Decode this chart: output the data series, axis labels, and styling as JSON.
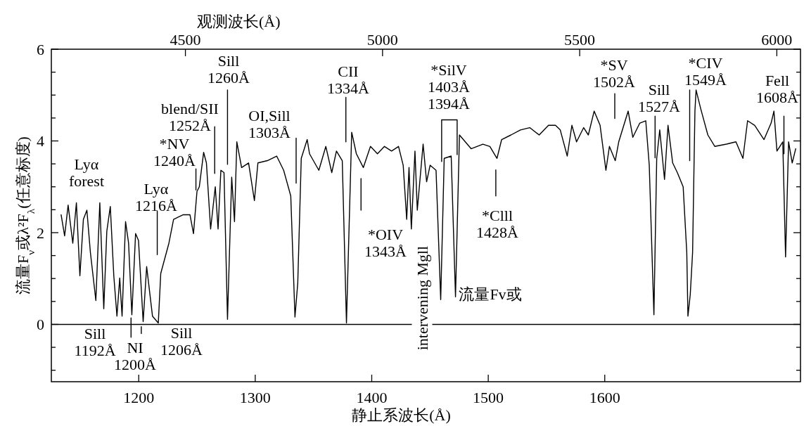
{
  "chart_data": {
    "type": "line",
    "xlabel": "静止系波长(Å)",
    "ylabel": "流量F$_{ν}$或λ²F$_{λ}$(任意标度)",
    "x2label": "观测波长(Å)",
    "xlim": [
      1125,
      1768
    ],
    "xticks": [
      1200,
      1300,
      1400,
      1500,
      1600
    ],
    "x2lim": [
      4160,
      6060
    ],
    "x2ticks": [
      4500,
      5000,
      5500,
      6000
    ],
    "ylim": [
      -1.25,
      6
    ],
    "yticks": [
      {
        "value": -1,
        "label": null
      },
      {
        "value": -0.5,
        "label": null
      },
      0,
      {
        "value": 0.5,
        "label": null
      },
      {
        "value": 1,
        "label": null
      },
      {
        "value": 1.5,
        "label": null
      },
      2,
      {
        "value": 2.5,
        "label": null
      },
      {
        "value": 3,
        "label": null
      },
      {
        "value": 3.5,
        "label": null
      },
      4,
      {
        "value": 4.5,
        "label": null
      },
      {
        "value": 5,
        "label": null
      },
      {
        "value": 5.5,
        "label": null
      },
      6
    ],
    "series": [
      {
        "color": "#000000",
        "x": [
          1133.4,
          1136.4,
          1139.4,
          1143.4,
          1146.5,
          1149.5,
          1152.5,
          1155.5,
          1158.5,
          1163.2,
          1166.6,
          1170,
          1172.6,
          1175.6,
          1178.6,
          1181.3,
          1183.7,
          1185.7,
          1188.7,
          1191.3,
          1194.1,
          1197.3,
          1199.8,
          1203.8,
          1206.8,
          1211.8,
          1216.8,
          1218.9,
          1225.9,
          1229.9,
          1238,
          1244,
          1247,
          1250,
          1252,
          1255.7,
          1258.1,
          1261.7,
          1265.7,
          1268.1,
          1270.5,
          1273.2,
          1276.2,
          1279.8,
          1282.2,
          1284.2,
          1288.3,
          1294.3,
          1299.3,
          1302.3,
          1310.4,
          1318.4,
          1324.4,
          1330.5,
          1334.1,
          1336.5,
          1339.5,
          1344.6,
          1346.6,
          1354.6,
          1360.6,
          1365.7,
          1369.7,
          1374.7,
          1378.3,
          1382.8,
          1386.8,
          1392.8,
          1398.9,
          1404.9,
          1410.9,
          1417,
          1423,
          1427,
          1430,
          1432,
          1434,
          1437.1,
          1439.1,
          1444.1,
          1447.1,
          1450.1,
          1455.2,
          1459.2,
          1462.2,
          1468.2,
          1471.9,
          1475.3,
          1485.3,
          1495.4,
          1501.4,
          1507.5,
          1511.5,
          1519.5,
          1527.6,
          1535.6,
          1543.7,
          1551.7,
          1557.7,
          1561.8,
          1567.8,
          1571.8,
          1575.8,
          1581.9,
          1585.9,
          1590.9,
          1596,
          1601,
          1604,
          1609,
          1612,
          1620.1,
          1624.1,
          1630.1,
          1635.2,
          1638.2,
          1642.2,
          1644.6,
          1647.2,
          1651.3,
          1654.3,
          1658.3,
          1662.3,
          1667.3,
          1670.4,
          1671.4,
          1673.4,
          1675.4,
          1677.4,
          1678.4,
          1682.4,
          1688.5,
          1694.5,
          1704.5,
          1712.6,
          1718.6,
          1722.6,
          1728.7,
          1736.7,
          1742.8,
          1745.2,
          1747.8,
          1752.8,
          1755.2,
          1757.8,
          1760.9,
          1763.9
        ],
        "values": [
          2.39,
          1.93,
          2.6,
          1.77,
          2.65,
          1.06,
          2.29,
          2.49,
          1.57,
          0.52,
          2.65,
          0.34,
          2.03,
          2.57,
          1.06,
          0.18,
          1.01,
          0.18,
          2.24,
          1.77,
          0.21,
          1.98,
          1.83,
          0.06,
          1.26,
          0.18,
          0.03,
          1.11,
          1.77,
          2.29,
          2.39,
          2.39,
          1.98,
          2.9,
          3,
          3.75,
          3.52,
          2.08,
          3,
          2.08,
          3.36,
          3.31,
          0.11,
          3.21,
          2.24,
          3.98,
          3.42,
          3.52,
          2.7,
          3.52,
          3.57,
          3.67,
          3.36,
          2.8,
          0.16,
          0.9,
          3.62,
          4.03,
          3.72,
          3.36,
          3.88,
          3.31,
          3.78,
          3.57,
          0.03,
          4.19,
          3.72,
          3.42,
          3.88,
          3.72,
          3.88,
          3.78,
          3.88,
          3.47,
          2.29,
          3.42,
          2.08,
          3.78,
          2.49,
          3.93,
          3.11,
          3.47,
          3.36,
          0.54,
          3.62,
          3.67,
          0.6,
          4.13,
          3.83,
          3.93,
          3.88,
          3.62,
          4.03,
          4.13,
          4.24,
          4.29,
          4.13,
          4.34,
          4.34,
          4.24,
          3.67,
          4.34,
          3.98,
          4.29,
          4.13,
          4.65,
          4.34,
          3.36,
          3.88,
          3.57,
          3.98,
          4.65,
          4.08,
          4.39,
          4.44,
          3.47,
          0.21,
          3.62,
          4.24,
          3.16,
          4.34,
          3.52,
          3.31,
          3,
          1.57,
          0.18,
          0.65,
          1.57,
          4.65,
          5.11,
          4.7,
          4.13,
          3.88,
          3.93,
          3.98,
          3.62,
          4.44,
          4.34,
          4.03,
          4.39,
          4.65,
          3.78,
          3.98,
          1.47,
          3.98,
          3.52,
          3.83
        ]
      },
      {
        "color": "#000000",
        "x": [
          1215.9,
          1215.9,
          null,
          1249.1,
          1249.1,
          null,
          1265.2,
          1265.2,
          null,
          1276.2,
          1276.2,
          null,
          1335.1,
          1335.1,
          null,
          1193.4,
          1193.4,
          null,
          1202.2,
          1202.2,
          null,
          1377.8,
          1377.8,
          null,
          1390.8,
          1390.8,
          null,
          1460.0,
          1460.0,
          1473.3,
          1473.3,
          null,
          1506.5,
          1506.5,
          null,
          1608.6,
          1608.6,
          null,
          1643.2,
          1643.2,
          null,
          1672.9,
          1672.9,
          null,
          1753.8,
          1753.8
        ],
        "values": [
          2.47,
          1.52,
          null,
          3.39,
          2.93,
          null,
          4.31,
          3.29,
          null,
          5.11,
          3.49,
          null,
          4.06,
          3.08,
          null,
          0.14,
          -0.28,
          null,
          -0.05,
          -0.2,
          null,
          4.95,
          3.98,
          null,
          3.18,
          2.49,
          null,
          3.55,
          4.46,
          4.46,
          3.7,
          null,
          3.37,
          2.8,
          null,
          5.03,
          4.49,
          null,
          4.54,
          3.63,
          null,
          5.11,
          3.57,
          null,
          4.54,
          3.72
        ]
      }
    ],
    "ref_lines": [
      {
        "axis": "y",
        "value": 0
      }
    ],
    "annotations": [
      "Lyα\nforest",
      "Lyα\n1216Å",
      "*NV\n1240Å",
      "blend/SII\n1252Å",
      "Sill\n1260Å",
      "OI,Sill\n1303Å",
      "CII\n1334Å",
      "*SilV\n1403Å\n1394Å",
      "*OIV\n1343Å",
      "intervening Mgll",
      "流量Fv或",
      "*Clll\n1428Å",
      "*SV\n1502Å",
      "Sill\n1527Å",
      "*CIV\n1549Å",
      "Fell\n1608Å",
      "Sill\n1192Å",
      "NI\n1200Å",
      "Sill\n1206Å"
    ]
  }
}
